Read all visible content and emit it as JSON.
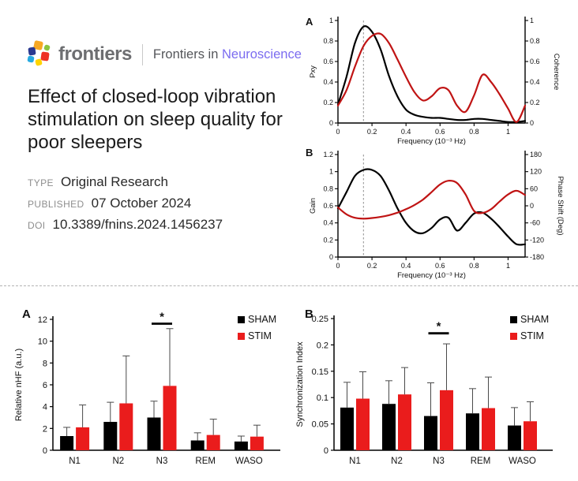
{
  "header": {
    "logo": {
      "wordmark": "frontiers",
      "journal_prefix": "Frontiers in",
      "journal_name": "Neuroscience",
      "journal_color": "#7b6cf0"
    },
    "title": "Effect of closed-loop vibration stimulation on sleep quality for poor sleepers",
    "meta": [
      {
        "label": "TYPE",
        "value": "Original Research"
      },
      {
        "label": "PUBLISHED",
        "value": "07 October 2024"
      },
      {
        "label": "DOI",
        "value": "10.3389/fnins.2024.1456237"
      }
    ]
  },
  "colors": {
    "curve_black": "#000000",
    "curve_red": "#c01414",
    "bar_black": "#000000",
    "bar_red": "#ea1c1c",
    "dashed_guide": "#909090",
    "error_bar": "#4a4a4a"
  },
  "chart_data": [
    {
      "id": "cross-spectrum",
      "type": "line",
      "panel_label": "A",
      "xlabel": "Frequency (10⁻³ Hz)",
      "ylabel_left": "Pxy",
      "ylabel_right": "Coherence",
      "xlim": [
        0,
        1.1
      ],
      "ylim_left": [
        0,
        1
      ],
      "ylim_right": [
        0,
        1
      ],
      "xticks": [
        [
          0,
          "0"
        ],
        [
          0.2,
          "0.2"
        ],
        [
          0.4,
          "0.4"
        ],
        [
          0.6,
          "0.6"
        ],
        [
          0.8,
          "0.8"
        ],
        [
          1,
          "1"
        ]
      ],
      "yticks_left": [
        [
          0,
          "0"
        ],
        [
          0.2,
          "0.2"
        ],
        [
          0.4,
          "0.4"
        ],
        [
          0.6,
          "0.6"
        ],
        [
          0.8,
          "0.8"
        ],
        [
          1,
          "1"
        ]
      ],
      "yticks_right": [
        [
          0,
          "0"
        ],
        [
          0.2,
          "0.2"
        ],
        [
          0.4,
          "0.4"
        ],
        [
          0.6,
          "0.6"
        ],
        [
          0.8,
          "0.8"
        ],
        [
          1,
          "1"
        ]
      ],
      "dashed_vline_x": 0.15,
      "grid": false,
      "x": [
        0,
        0.05,
        0.1,
        0.15,
        0.2,
        0.25,
        0.3,
        0.35,
        0.4,
        0.45,
        0.5,
        0.55,
        0.6,
        0.65,
        0.7,
        0.75,
        0.8,
        0.85,
        0.9,
        0.95,
        1,
        1.05,
        1.1
      ],
      "series": [
        {
          "name": "Pxy",
          "axis": "left",
          "color": "#000000",
          "values": [
            0.18,
            0.45,
            0.78,
            0.94,
            0.89,
            0.72,
            0.46,
            0.26,
            0.13,
            0.08,
            0.06,
            0.05,
            0.05,
            0.04,
            0.03,
            0.03,
            0.04,
            0.04,
            0.03,
            0.02,
            0.01,
            0.01,
            0.02
          ]
        },
        {
          "name": "Coherence",
          "axis": "right",
          "color": "#c01414",
          "values": [
            0.17,
            0.32,
            0.55,
            0.75,
            0.85,
            0.87,
            0.78,
            0.62,
            0.45,
            0.3,
            0.22,
            0.26,
            0.34,
            0.32,
            0.17,
            0.11,
            0.27,
            0.47,
            0.4,
            0.28,
            0.14,
            0.01,
            0.17
          ]
        }
      ]
    },
    {
      "id": "gain-phase",
      "type": "line",
      "panel_label": "B",
      "xlabel": "Frequency (10⁻³ Hz)",
      "ylabel_left": "Gain",
      "ylabel_right": "Phase Shift (Deg)",
      "xlim": [
        0,
        1.1
      ],
      "ylim_left": [
        0,
        1.2
      ],
      "ylim_right": [
        -180,
        180
      ],
      "xticks": [
        [
          0,
          "0"
        ],
        [
          0.2,
          "0.2"
        ],
        [
          0.4,
          "0.4"
        ],
        [
          0.6,
          "0.6"
        ],
        [
          0.8,
          "0.8"
        ],
        [
          1,
          "1"
        ]
      ],
      "yticks_left": [
        [
          0,
          "0"
        ],
        [
          0.2,
          "0.2"
        ],
        [
          0.4,
          "0.4"
        ],
        [
          0.6,
          "0.6"
        ],
        [
          0.8,
          "0.8"
        ],
        [
          1,
          "1"
        ],
        [
          1.2,
          "1.2"
        ]
      ],
      "yticks_right": [
        [
          -180,
          "-180"
        ],
        [
          -120,
          "-120"
        ],
        [
          -60,
          "-60"
        ],
        [
          0,
          "0"
        ],
        [
          60,
          "60"
        ],
        [
          120,
          "120"
        ],
        [
          180,
          "180"
        ]
      ],
      "dashed_vline_x": 0.15,
      "grid": false,
      "x": [
        0,
        0.05,
        0.1,
        0.15,
        0.2,
        0.25,
        0.3,
        0.35,
        0.4,
        0.45,
        0.5,
        0.55,
        0.6,
        0.65,
        0.7,
        0.75,
        0.8,
        0.85,
        0.9,
        0.95,
        1,
        1.05,
        1.1
      ],
      "series": [
        {
          "name": "Gain",
          "axis": "left",
          "color": "#000000",
          "values": [
            0.57,
            0.76,
            0.95,
            1.02,
            1.02,
            0.95,
            0.78,
            0.57,
            0.4,
            0.3,
            0.28,
            0.34,
            0.44,
            0.46,
            0.31,
            0.4,
            0.51,
            0.52,
            0.45,
            0.35,
            0.24,
            0.15,
            0.15
          ]
        },
        {
          "name": "Phase Shift",
          "axis": "right",
          "color": "#c01414",
          "values": [
            -6,
            -30,
            -42,
            -45,
            -43,
            -39,
            -33,
            -24,
            -12,
            3,
            22,
            48,
            75,
            88,
            80,
            40,
            -18,
            -25,
            -12,
            15,
            40,
            53,
            38
          ]
        }
      ]
    },
    {
      "id": "relative-nhf",
      "type": "bar",
      "panel_label": "A",
      "ylabel": "Relative nHF (a.u.)",
      "categories": [
        "N1",
        "N2",
        "N3",
        "REM",
        "WASO"
      ],
      "ylim": [
        0,
        12
      ],
      "yticks": [
        [
          0,
          "0"
        ],
        [
          2,
          "2"
        ],
        [
          4,
          "4"
        ],
        [
          6,
          "6"
        ],
        [
          8,
          "8"
        ],
        [
          10,
          "10"
        ],
        [
          12,
          "12"
        ]
      ],
      "legend_position": "top-right",
      "series": [
        {
          "name": "SHAM",
          "color": "#000000",
          "values": [
            1.3,
            2.6,
            3.0,
            0.9,
            0.8
          ],
          "errors": [
            0.8,
            1.8,
            1.5,
            0.7,
            0.5
          ]
        },
        {
          "name": "STIM",
          "color": "#ea1c1c",
          "values": [
            2.1,
            4.3,
            5.9,
            1.4,
            1.25
          ],
          "errors": [
            2.05,
            4.35,
            5.25,
            1.45,
            1.05
          ]
        }
      ],
      "significance": {
        "category": "N3",
        "marker": "*",
        "y": 11.6
      }
    },
    {
      "id": "sync-index",
      "type": "bar",
      "panel_label": "B",
      "ylabel": "Synchronization Index",
      "categories": [
        "N1",
        "N2",
        "N3",
        "REM",
        "WASO"
      ],
      "ylim": [
        0,
        0.25
      ],
      "yticks": [
        [
          0,
          "0"
        ],
        [
          0.05,
          "0.05"
        ],
        [
          0.1,
          "0.1"
        ],
        [
          0.15,
          "0.15"
        ],
        [
          0.2,
          "0.2"
        ],
        [
          0.25,
          "0.25"
        ]
      ],
      "legend_position": "top-right",
      "series": [
        {
          "name": "SHAM",
          "color": "#000000",
          "values": [
            0.081,
            0.088,
            0.065,
            0.07,
            0.047
          ],
          "errors": [
            0.048,
            0.044,
            0.063,
            0.047,
            0.034
          ]
        },
        {
          "name": "STIM",
          "color": "#ea1c1c",
          "values": [
            0.098,
            0.106,
            0.114,
            0.08,
            0.055
          ],
          "errors": [
            0.051,
            0.051,
            0.088,
            0.059,
            0.037
          ]
        }
      ],
      "significance": {
        "category": "N3",
        "marker": "*",
        "y": 0.222
      }
    }
  ]
}
